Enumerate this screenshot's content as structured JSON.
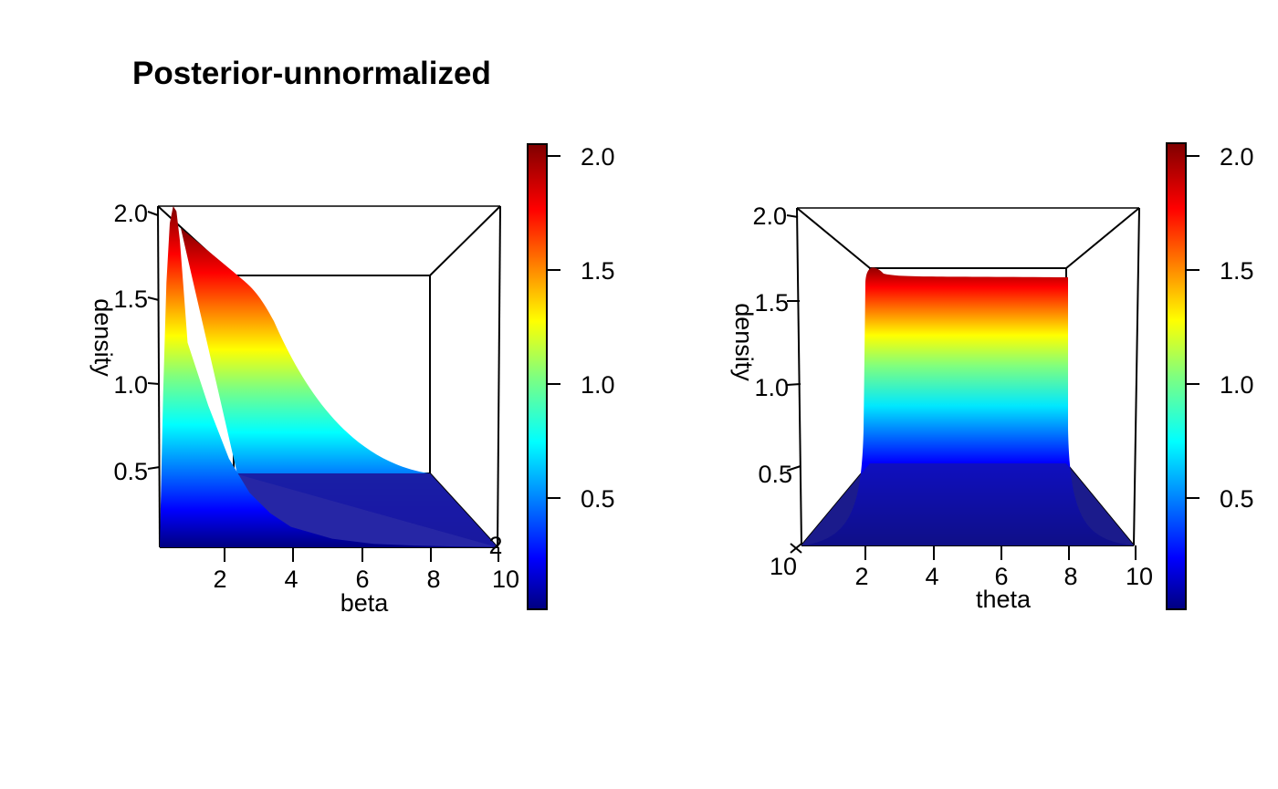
{
  "figure": {
    "title": "Posterior-unnormalized"
  },
  "chart_data": [
    {
      "type": "surface",
      "view": "persp3d looking down the depth axis",
      "xlabel": "beta",
      "ylabel": "density",
      "x_ticks": [
        "2",
        "4",
        "6",
        "8",
        "10"
      ],
      "z_ticks": [
        "0.5",
        "1.0",
        "1.5",
        "2.0"
      ],
      "depth_tick_fragment": "2",
      "xlim": [
        0,
        10
      ],
      "zlim": [
        0,
        2.0
      ],
      "profile_front": {
        "x": [
          0,
          0.3,
          0.6,
          0.9,
          1.2,
          1.5,
          1.8,
          2.1,
          2.5,
          3.0,
          3.5,
          4.0,
          4.5,
          5.0,
          6.0,
          7.0,
          8.0,
          9.0,
          10.0
        ],
        "z": [
          0.0,
          0.9,
          1.55,
          1.9,
          2.0,
          1.97,
          1.8,
          1.55,
          1.2,
          0.83,
          0.52,
          0.32,
          0.2,
          0.12,
          0.05,
          0.02,
          0.01,
          0.005,
          0.0
        ]
      },
      "colorbar": {
        "ticks": [
          "0.5",
          "1.0",
          "1.5",
          "2.0"
        ],
        "range": [
          0,
          2.05
        ],
        "palette": "jet"
      }
    },
    {
      "type": "surface",
      "view": "persp3d looking down the depth axis",
      "xlabel": "theta",
      "ylabel": "density",
      "x_ticks": [
        "2",
        "4",
        "6",
        "8",
        "10"
      ],
      "z_ticks": [
        "0.5",
        "1.0",
        "1.5",
        "2.0"
      ],
      "depth_tick_fragment": "10",
      "xlim": [
        0,
        10
      ],
      "zlim": [
        0,
        2.0
      ],
      "plateau_level": 1.55,
      "colorbar": {
        "ticks": [
          "0.5",
          "1.0",
          "1.5",
          "2.0"
        ],
        "range": [
          0,
          2.05
        ],
        "palette": "jet"
      }
    }
  ],
  "colors": {
    "frame": "#000000",
    "background": "#ffffff"
  }
}
